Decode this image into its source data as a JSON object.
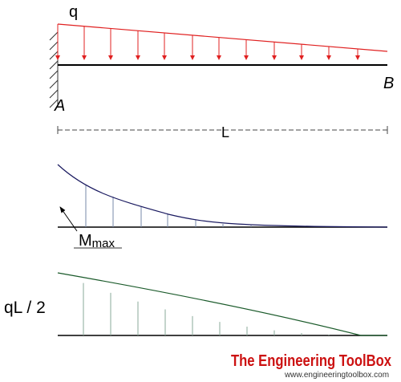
{
  "labels": {
    "load": "q",
    "end_a": "A",
    "end_b": "B",
    "span": "L",
    "moment": "M",
    "moment_sub": "max",
    "shear": "qL / 2"
  },
  "logo": {
    "title": "The Engineering ToolBox",
    "url": "www.engineeringtoolbox.com"
  }
}
